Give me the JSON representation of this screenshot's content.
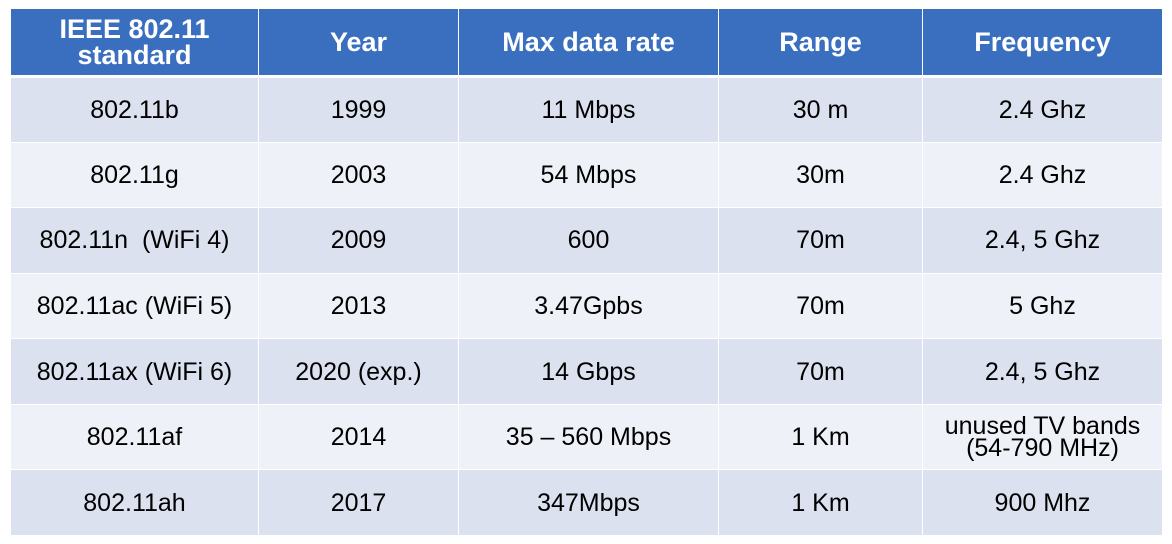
{
  "table": {
    "headers": [
      [
        "IEEE 802.11",
        "standard"
      ],
      [
        "Year"
      ],
      [
        "Max data rate"
      ],
      [
        "Range"
      ],
      [
        "Frequency"
      ]
    ],
    "rows": [
      {
        "standard": "802.11b",
        "year": "1999",
        "rate": "11 Mbps",
        "range": "30 m",
        "frequency": [
          "2.4 Ghz"
        ]
      },
      {
        "standard": "802.11g",
        "year": "2003",
        "rate": "54 Mbps",
        "range": "30m",
        "frequency": [
          "2.4 Ghz"
        ]
      },
      {
        "standard": "802.11n  (WiFi 4)",
        "year": "2009",
        "rate": "600",
        "range": "70m",
        "frequency": [
          "2.4, 5 Ghz"
        ]
      },
      {
        "standard": "802.11ac (WiFi 5)",
        "year": "2013",
        "rate": "3.47Gpbs",
        "range": "70m",
        "frequency": [
          "5 Ghz"
        ]
      },
      {
        "standard": "802.11ax (WiFi 6)",
        "year": "2020 (exp.)",
        "rate": "14 Gbps",
        "range": "70m",
        "frequency": [
          "2.4, 5 Ghz"
        ]
      },
      {
        "standard": "802.11af",
        "year": "2014",
        "rate": "35 – 560 Mbps",
        "range": "1 Km",
        "frequency": [
          "unused TV bands",
          "(54-790 MHz)"
        ]
      },
      {
        "standard": "802.11ah",
        "year": "2017",
        "rate": "347Mbps",
        "range": "1 Km",
        "frequency": [
          "900 Mhz"
        ]
      }
    ]
  }
}
